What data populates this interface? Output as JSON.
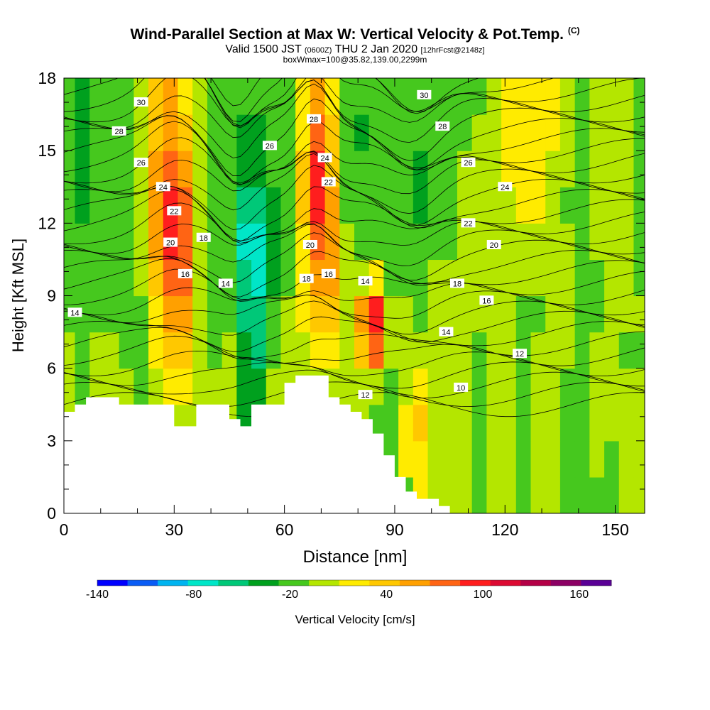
{
  "title": {
    "main": "Wind-Parallel Section at Max W: Vertical Velocity & Pot.Temp.",
    "copyright": "(C)",
    "valid_prefix": "Valid 1500 JST",
    "valid_utc": "(0600Z)",
    "valid_date": "THU 2 Jan 2020",
    "forecast": "[12hrFcst@2148z]",
    "box": "boxWmax=100@35.82,139.00,2299m"
  },
  "chart_data": {
    "type": "heatmap",
    "xlabel": "Distance [nm]",
    "ylabel": "Height [Kft MSL]",
    "xlim": [
      0,
      158
    ],
    "ylim": [
      0,
      18
    ],
    "x_ticks": [
      0,
      30,
      60,
      90,
      120,
      150
    ],
    "y_ticks": [
      0,
      3,
      6,
      9,
      12,
      15,
      18
    ],
    "colorbar": {
      "title": "Vertical Velocity [cm/s]",
      "levels": [
        -140,
        -120,
        -100,
        -80,
        -60,
        -40,
        -20,
        0,
        20,
        40,
        60,
        80,
        100,
        120,
        140,
        160,
        180
      ],
      "labels": [
        "-140",
        "-80",
        "-20",
        "40",
        "100",
        "160"
      ],
      "label_values": [
        -140,
        -80,
        -20,
        40,
        100,
        160
      ],
      "colors": [
        "#0000ff",
        "#0a5cf5",
        "#00b4f0",
        "#00e6c8",
        "#00c878",
        "#00a01e",
        "#46c81e",
        "#b4e600",
        "#ffeb00",
        "#ffc800",
        "#ffa000",
        "#ff6414",
        "#ff1e1e",
        "#dc0a32",
        "#b40046",
        "#8c0064",
        "#5a0096"
      ]
    },
    "w_cells": {
      "cols_x": [
        0,
        3,
        7,
        11,
        15,
        19,
        23,
        27,
        31,
        35,
        39,
        43,
        47,
        51,
        55,
        59,
        63,
        67,
        71,
        75,
        79,
        83,
        87,
        91,
        95,
        99,
        103,
        107,
        111,
        115,
        119,
        123,
        127,
        131,
        135,
        139,
        143,
        147,
        151,
        155
      ],
      "rows_z": [
        0,
        1.5,
        3,
        4.5,
        6,
        7.5,
        9,
        10.5,
        12,
        13.5,
        15,
        16.5
      ],
      "values": [
        [
          -5,
          -5,
          -5,
          -5,
          -5,
          -5,
          -5,
          -5,
          -5,
          -5,
          -5,
          -5,
          -5,
          -5,
          -5,
          -5,
          -5,
          -5,
          -5,
          -5,
          -5,
          -5,
          -5,
          -5,
          20,
          10,
          10,
          10,
          -5,
          10,
          10,
          -5,
          10,
          10,
          -5,
          -5,
          -5,
          -5,
          10,
          10
        ],
        [
          -5,
          -5,
          -5,
          -5,
          -5,
          -5,
          -5,
          -5,
          -5,
          -5,
          -5,
          -5,
          -5,
          -5,
          -5,
          -5,
          -5,
          -5,
          -5,
          -5,
          -5,
          -5,
          -5,
          20,
          30,
          10,
          10,
          10,
          -5,
          10,
          10,
          -5,
          10,
          10,
          -5,
          -5,
          10,
          -5,
          10,
          10
        ],
        [
          10,
          10,
          10,
          10,
          10,
          10,
          10,
          10,
          10,
          10,
          10,
          10,
          -40,
          -40,
          -5,
          -5,
          -5,
          -5,
          10,
          10,
          10,
          -5,
          -5,
          30,
          40,
          10,
          10,
          10,
          -5,
          10,
          10,
          -5,
          10,
          10,
          -5,
          -5,
          10,
          10,
          10,
          10
        ],
        [
          10,
          -5,
          10,
          10,
          10,
          -5,
          10,
          30,
          30,
          10,
          10,
          10,
          -40,
          -40,
          10,
          10,
          10,
          10,
          10,
          10,
          10,
          10,
          -5,
          10,
          30,
          10,
          10,
          10,
          -5,
          10,
          10,
          -5,
          10,
          10,
          -5,
          -5,
          10,
          10,
          10,
          10
        ],
        [
          10,
          -5,
          10,
          10,
          -5,
          -5,
          30,
          40,
          50,
          10,
          -5,
          10,
          -40,
          -50,
          -20,
          10,
          10,
          30,
          30,
          10,
          50,
          80,
          10,
          10,
          10,
          10,
          10,
          10,
          -5,
          10,
          10,
          -5,
          10,
          10,
          10,
          -5,
          10,
          10,
          -5,
          -5
        ],
        [
          -5,
          -5,
          -5,
          -5,
          -5,
          -5,
          30,
          60,
          60,
          10,
          -20,
          -5,
          -50,
          -60,
          -20,
          10,
          30,
          50,
          50,
          10,
          60,
          100,
          10,
          10,
          -5,
          10,
          10,
          10,
          10,
          10,
          10,
          -20,
          -5,
          10,
          10,
          -5,
          -5,
          10,
          10,
          10
        ],
        [
          -5,
          -20,
          -5,
          -5,
          -5,
          10,
          40,
          80,
          80,
          10,
          -20,
          -20,
          -60,
          -80,
          -40,
          -5,
          30,
          60,
          60,
          10,
          10,
          30,
          -5,
          -20,
          -5,
          10,
          10,
          10,
          10,
          10,
          10,
          10,
          10,
          10,
          10,
          -5,
          -5,
          10,
          10,
          -5
        ],
        [
          -20,
          -20,
          -5,
          -5,
          -5,
          10,
          60,
          100,
          80,
          10,
          -20,
          -20,
          -80,
          -80,
          -40,
          -20,
          30,
          80,
          60,
          10,
          -5,
          -5,
          -5,
          -20,
          -20,
          -5,
          -5,
          10,
          10,
          10,
          10,
          10,
          10,
          10,
          10,
          -5,
          10,
          10,
          10,
          -5
        ],
        [
          -20,
          -40,
          -5,
          -5,
          -5,
          10,
          60,
          100,
          80,
          10,
          -20,
          -20,
          -60,
          -60,
          -40,
          -20,
          40,
          100,
          60,
          -5,
          -5,
          -5,
          -20,
          -20,
          -40,
          -20,
          -5,
          10,
          10,
          10,
          10,
          30,
          30,
          10,
          -5,
          -5,
          10,
          10,
          10,
          -5
        ],
        [
          -20,
          -40,
          -5,
          -5,
          -5,
          10,
          60,
          80,
          60,
          10,
          -5,
          -20,
          -40,
          -40,
          -20,
          -5,
          40,
          100,
          50,
          -20,
          -20,
          -20,
          -20,
          -20,
          -40,
          -20,
          -5,
          10,
          10,
          10,
          30,
          30,
          30,
          10,
          10,
          -5,
          10,
          10,
          10,
          -5
        ],
        [
          -20,
          -40,
          -5,
          -5,
          -5,
          10,
          40,
          60,
          40,
          10,
          -5,
          -20,
          -40,
          -40,
          -20,
          -5,
          30,
          80,
          40,
          -20,
          -40,
          -20,
          -20,
          -20,
          -20,
          -5,
          -5,
          -5,
          10,
          10,
          30,
          30,
          30,
          30,
          10,
          -5,
          10,
          10,
          10,
          -5
        ],
        [
          -20,
          -40,
          -5,
          -5,
          -5,
          10,
          40,
          60,
          30,
          10,
          -5,
          -20,
          -20,
          -20,
          -5,
          -5,
          30,
          60,
          30,
          -20,
          -20,
          -5,
          -20,
          -20,
          -20,
          -5,
          -5,
          -5,
          -5,
          10,
          30,
          30,
          30,
          30,
          10,
          -5,
          10,
          10,
          10,
          -5
        ]
      ]
    },
    "terrain": {
      "x": [
        0,
        3,
        3,
        6,
        6,
        9,
        9,
        15,
        15,
        27,
        27,
        30,
        30,
        36,
        36,
        45,
        45,
        48,
        48,
        51,
        51,
        60,
        60,
        63,
        63,
        72,
        72,
        75,
        75,
        78,
        78,
        81,
        81,
        84,
        84,
        87,
        87,
        90,
        90,
        93,
        93,
        96,
        96,
        102,
        102,
        105,
        105,
        158
      ],
      "z": [
        4.2,
        4.2,
        4.5,
        4.5,
        4.8,
        4.8,
        4.8,
        4.8,
        4.5,
        4.5,
        4.5,
        4.5,
        3.6,
        3.6,
        4.5,
        4.5,
        3.9,
        3.9,
        3.6,
        3.6,
        4.5,
        4.5,
        5.4,
        5.4,
        5.7,
        5.7,
        4.8,
        4.8,
        4.5,
        4.5,
        4.2,
        4.2,
        3.9,
        3.9,
        3.3,
        3.3,
        2.4,
        2.4,
        1.5,
        1.5,
        0.9,
        0.9,
        0.6,
        0.6,
        0.3,
        0.3,
        0,
        0
      ]
    },
    "theta_contours": {
      "levels": [
        10,
        12,
        14,
        16,
        18,
        20,
        22,
        24,
        26,
        28,
        30
      ],
      "labels": [
        {
          "text": "30",
          "x": 21,
          "z": 17.0
        },
        {
          "text": "28",
          "x": 15,
          "z": 15.8
        },
        {
          "text": "26",
          "x": 21,
          "z": 14.5
        },
        {
          "text": "24",
          "x": 27,
          "z": 13.5
        },
        {
          "text": "22",
          "x": 30,
          "z": 12.5
        },
        {
          "text": "20",
          "x": 29,
          "z": 11.2
        },
        {
          "text": "18",
          "x": 38,
          "z": 11.4
        },
        {
          "text": "16",
          "x": 33,
          "z": 9.9
        },
        {
          "text": "14",
          "x": 3,
          "z": 8.3
        },
        {
          "text": "14",
          "x": 44,
          "z": 9.5
        },
        {
          "text": "26",
          "x": 56,
          "z": 15.2
        },
        {
          "text": "28",
          "x": 68,
          "z": 16.3
        },
        {
          "text": "24",
          "x": 71,
          "z": 14.7
        },
        {
          "text": "22",
          "x": 72,
          "z": 13.7
        },
        {
          "text": "20",
          "x": 67,
          "z": 11.1
        },
        {
          "text": "18",
          "x": 66,
          "z": 9.7
        },
        {
          "text": "16",
          "x": 72,
          "z": 9.9
        },
        {
          "text": "14",
          "x": 82,
          "z": 9.6
        },
        {
          "text": "12",
          "x": 82,
          "z": 4.9
        },
        {
          "text": "30",
          "x": 98,
          "z": 17.3
        },
        {
          "text": "28",
          "x": 103,
          "z": 16.0
        },
        {
          "text": "26",
          "x": 110,
          "z": 14.5
        },
        {
          "text": "24",
          "x": 120,
          "z": 13.5
        },
        {
          "text": "22",
          "x": 110,
          "z": 12.0
        },
        {
          "text": "20",
          "x": 117,
          "z": 11.1
        },
        {
          "text": "18",
          "x": 107,
          "z": 9.5
        },
        {
          "text": "16",
          "x": 115,
          "z": 8.8
        },
        {
          "text": "14",
          "x": 104,
          "z": 7.5
        },
        {
          "text": "12",
          "x": 124,
          "z": 6.6
        },
        {
          "text": "10",
          "x": 108,
          "z": 5.2
        }
      ]
    }
  }
}
